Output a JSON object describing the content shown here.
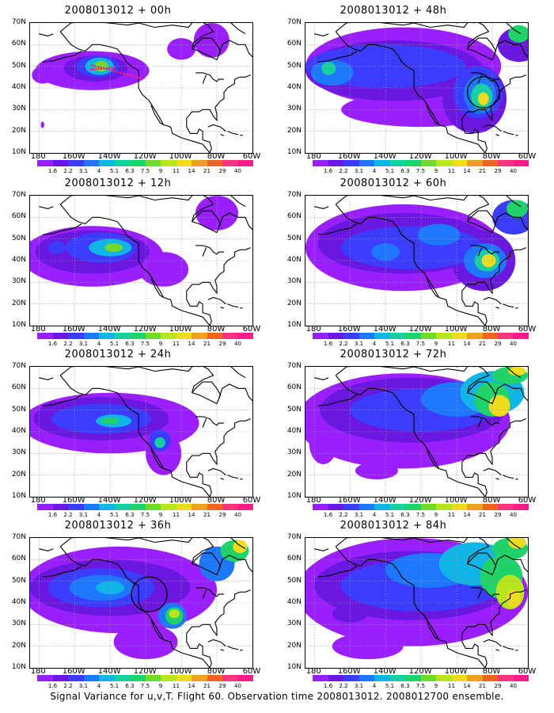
{
  "panels": [
    {
      "title": "2008013012 + 00h",
      "col": 0,
      "row": 0
    },
    {
      "title": "2008013012 + 48h",
      "col": 1,
      "row": 0
    },
    {
      "title": "2008013012 + 12h",
      "col": 0,
      "row": 1
    },
    {
      "title": "2008013012 + 60h",
      "col": 1,
      "row": 1
    },
    {
      "title": "2008013012 + 24h",
      "col": 0,
      "row": 2
    },
    {
      "title": "2008013012 + 72h",
      "col": 1,
      "row": 2
    },
    {
      "title": "2008013012 + 36h",
      "col": 0,
      "row": 3
    },
    {
      "title": "2008013012 + 84h",
      "col": 1,
      "row": 3
    }
  ],
  "lat_labels": [
    "70N",
    "60N",
    "50N",
    "40N",
    "30N",
    "20N",
    "10N"
  ],
  "lon_labels": [
    "180",
    "160W",
    "140W",
    "120W",
    "100W",
    "80W",
    "60W"
  ],
  "colorbar": {
    "labels": [
      "1.6",
      "2.2",
      "3.1",
      "4",
      "5.1",
      "6.3",
      "7.5",
      "9",
      "11",
      "14",
      "21",
      "29",
      "40"
    ],
    "colors": [
      "#9a1fff",
      "#6a18e0",
      "#3c3cff",
      "#1e78ff",
      "#11b4e6",
      "#17cfa0",
      "#20d26a",
      "#6edc28",
      "#b8e61e",
      "#f0dc1e",
      "#f0a020",
      "#f0641e",
      "#ff3280",
      "#ff1a8c"
    ]
  },
  "caption": "Signal Variance for u,v,T. Flight 60. Observation time 2008013012. 2008012700 ensemble."
}
